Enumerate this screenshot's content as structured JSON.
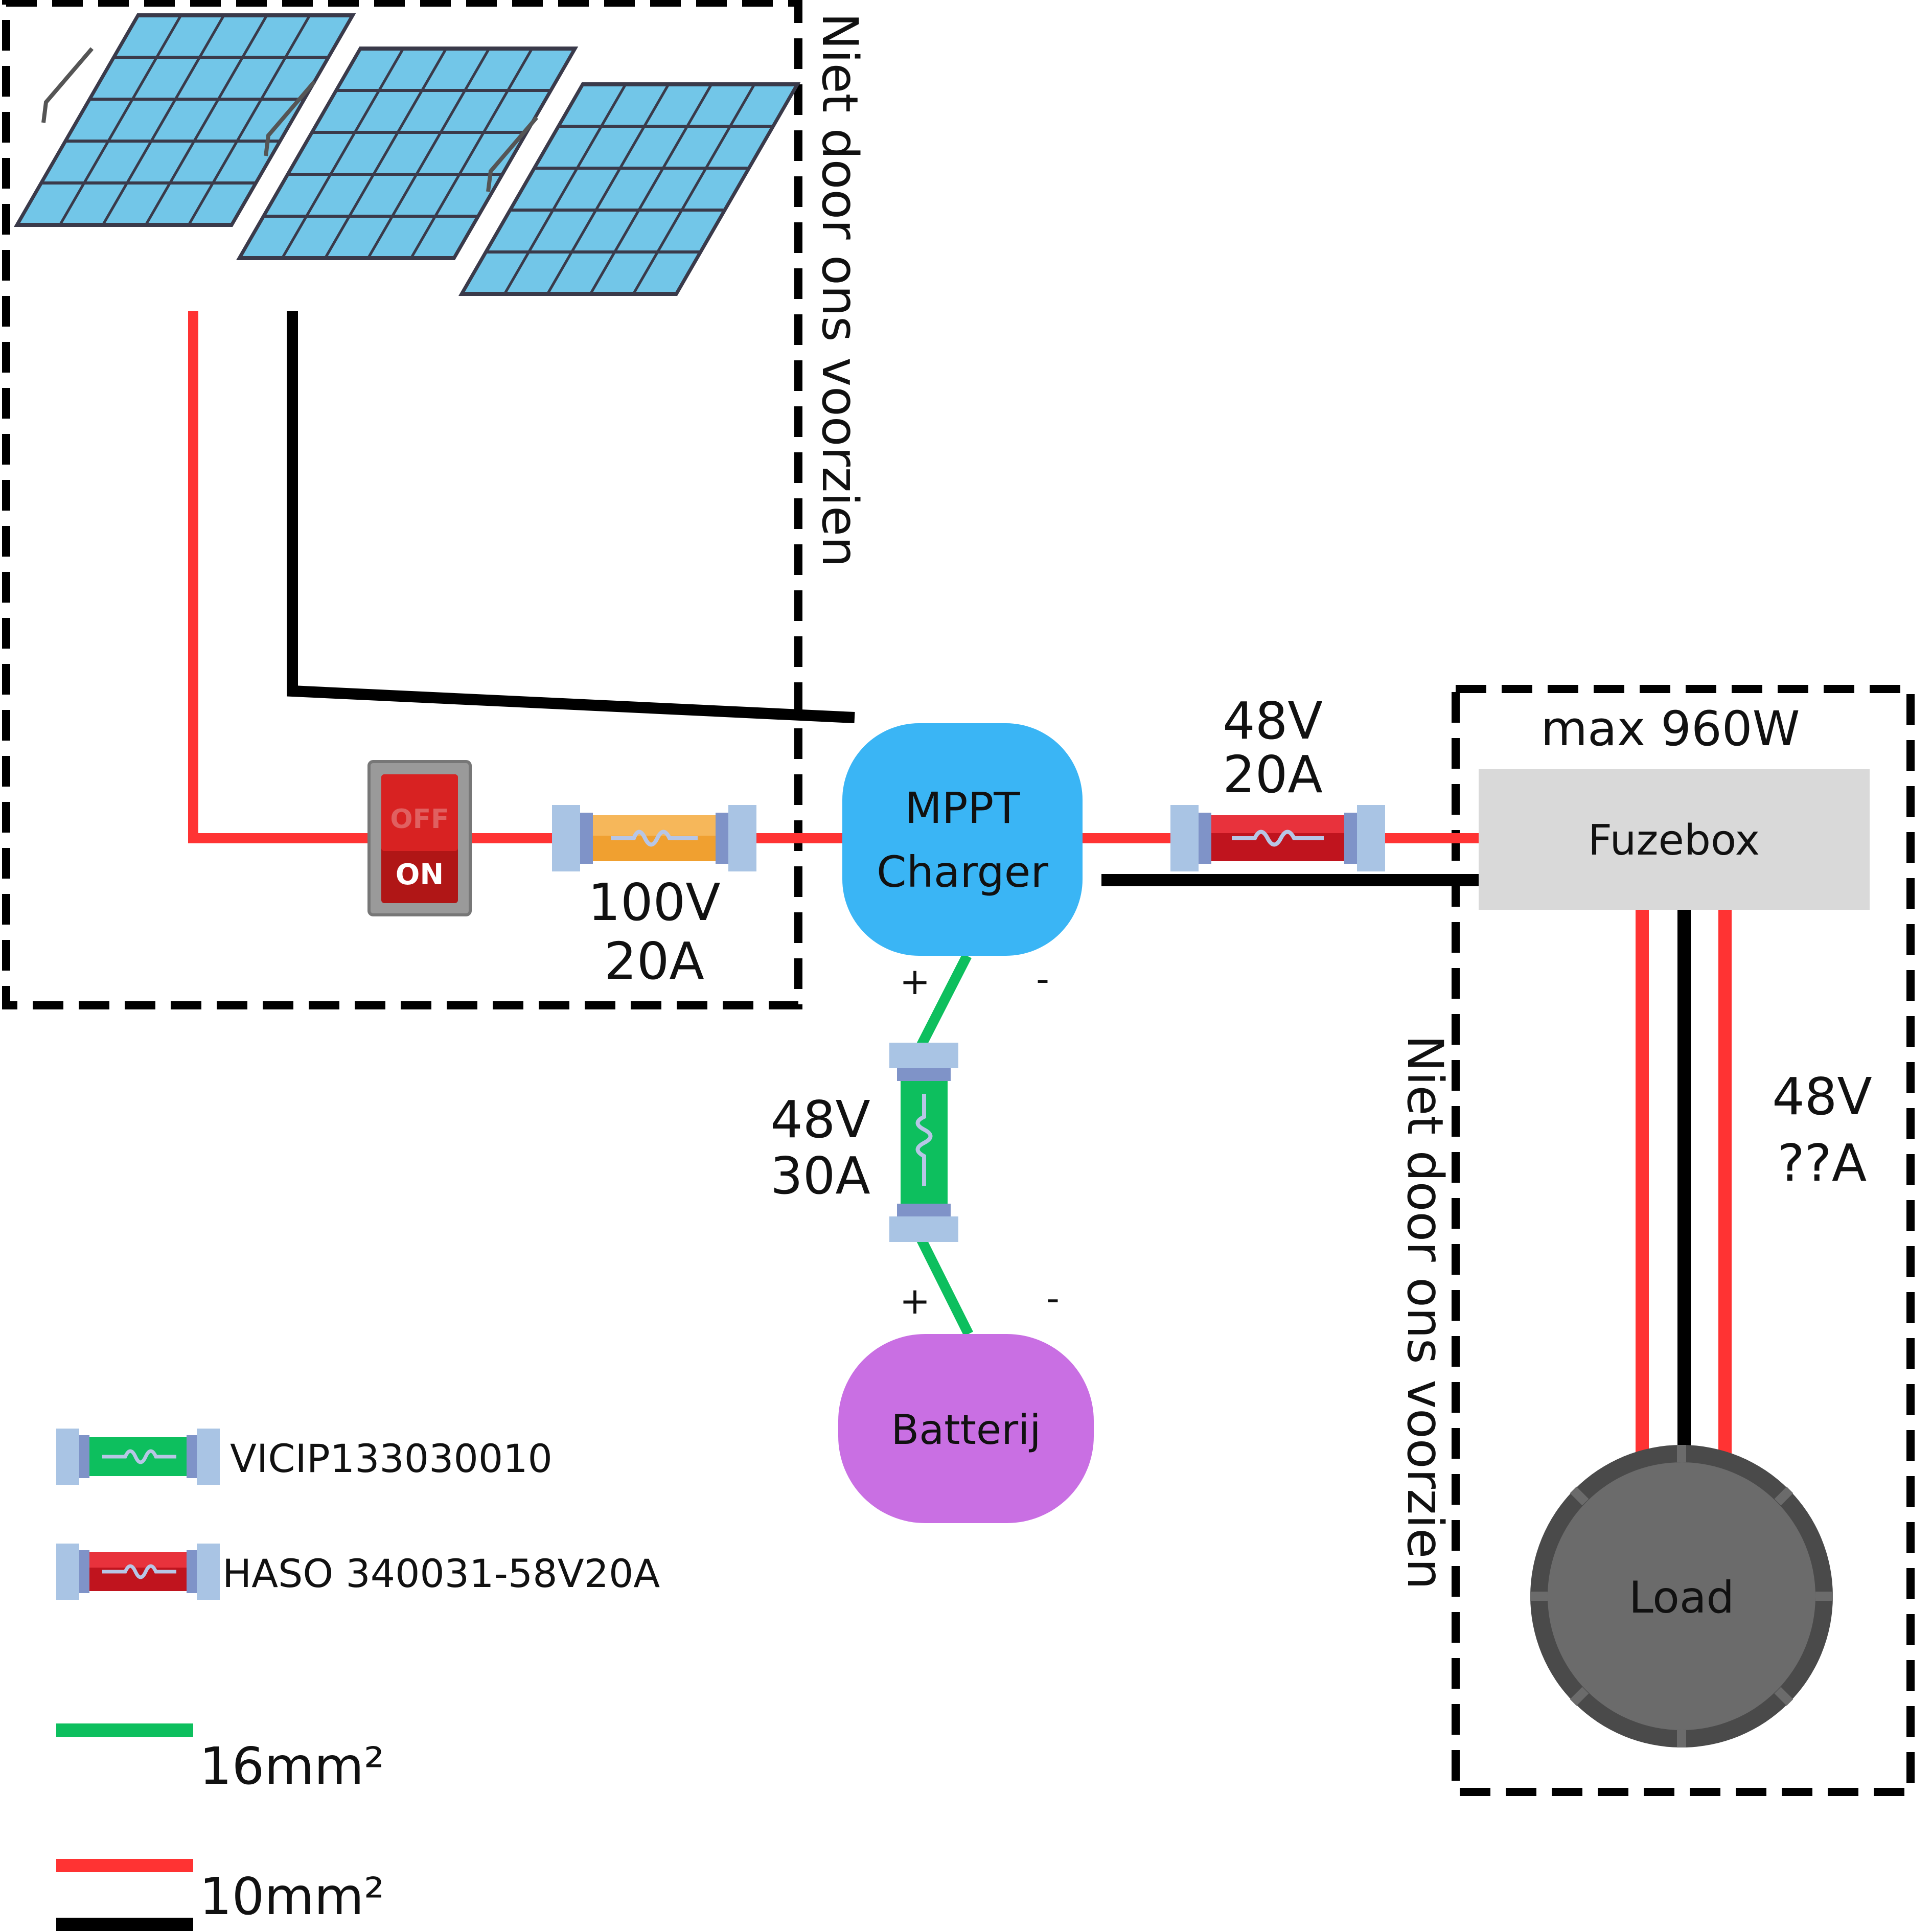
{
  "regions": {
    "solar_region_label": "Niet door ons voorzien",
    "load_region_label": "Niet door ons voorzien"
  },
  "components": {
    "mppt_line1": "MPPT",
    "mppt_line2": "Charger",
    "battery": "Batterij",
    "fuzebox": "Fuzebox",
    "fuzebox_power": "max 960W",
    "load": "Load"
  },
  "switch": {
    "off_label": "OFF",
    "on_label": "ON"
  },
  "fuses": {
    "solar_voltage": "100V",
    "solar_current": "20A",
    "output_voltage": "48V",
    "output_current": "20A",
    "battery_voltage": "48V",
    "battery_current": "30A"
  },
  "load_rating": {
    "voltage": "48V",
    "current": "??A"
  },
  "terminals": {
    "mppt_plus": "+",
    "mppt_minus": "-",
    "battery_plus": "+",
    "battery_minus": "-"
  },
  "legend": {
    "green_fuse": "VICIP133030010",
    "red_fuse": "HASO 340031-58V20A",
    "cable_16": "16mm²",
    "cable_10": "10mm²"
  },
  "colors": {
    "wire_red": "#ff3333",
    "wire_black": "#000000",
    "wire_green": "#0dbf5e",
    "mppt": "#3ab5f5",
    "battery": "#c96fe3",
    "fuzebox": "#d9d9d9",
    "load": "#6b6b6b",
    "panel": "#6fc3e6"
  }
}
